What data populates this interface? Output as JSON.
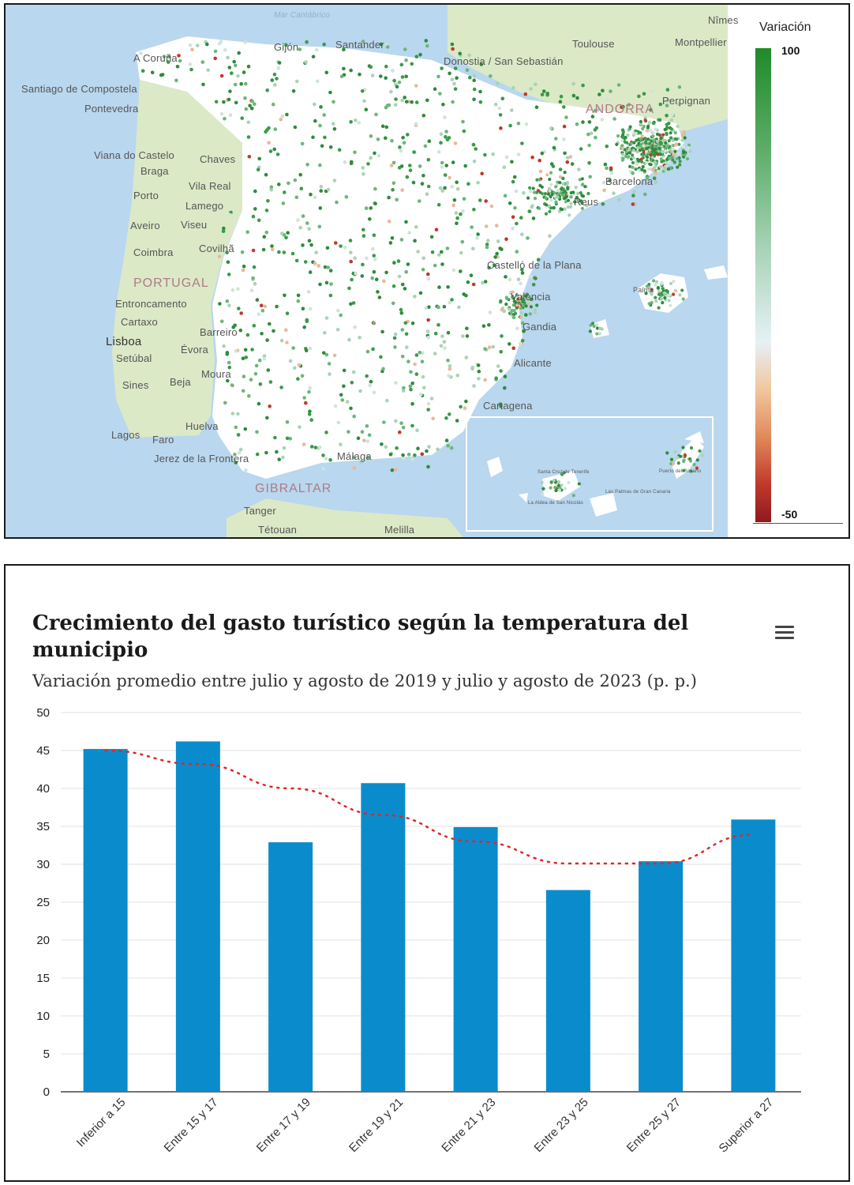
{
  "map": {
    "sea_label": "Mar Cantábrico",
    "places": [
      {
        "name": "Santander"
      },
      {
        "name": "Gijón"
      },
      {
        "name": "A Coruña"
      },
      {
        "name": "Santiago de Compostela"
      },
      {
        "name": "Pontevedra"
      },
      {
        "name": "Viana do Castelo"
      },
      {
        "name": "Braga"
      },
      {
        "name": "Chaves"
      },
      {
        "name": "Vila Real"
      },
      {
        "name": "Porto"
      },
      {
        "name": "Lamego"
      },
      {
        "name": "Aveiro"
      },
      {
        "name": "Viseu"
      },
      {
        "name": "Coimbra"
      },
      {
        "name": "Covilhã"
      },
      {
        "name": "PORTUGAL"
      },
      {
        "name": "Entroncamento"
      },
      {
        "name": "Cartaxo"
      },
      {
        "name": "Lisboa"
      },
      {
        "name": "Barreiro"
      },
      {
        "name": "Setúbal"
      },
      {
        "name": "Évora"
      },
      {
        "name": "Sines"
      },
      {
        "name": "Beja"
      },
      {
        "name": "Moura"
      },
      {
        "name": "Lagos"
      },
      {
        "name": "Faro"
      },
      {
        "name": "Huelva"
      },
      {
        "name": "Jerez de la Frontera"
      },
      {
        "name": "GIBRALTAR"
      },
      {
        "name": "Tanger"
      },
      {
        "name": "Tétouan"
      },
      {
        "name": "Melilla"
      },
      {
        "name": "Málaga"
      },
      {
        "name": "Cartagena"
      },
      {
        "name": "Alicante"
      },
      {
        "name": "Gandia"
      },
      {
        "name": "Valencia"
      },
      {
        "name": "Castelló de la Plana"
      },
      {
        "name": "Reus"
      },
      {
        "name": "Barcelona"
      },
      {
        "name": "ANDORRA"
      },
      {
        "name": "Perpignan"
      },
      {
        "name": "Toulouse"
      },
      {
        "name": "Montpellier"
      },
      {
        "name": "Nîmes"
      },
      {
        "name": "Donostia / San Sebastián"
      },
      {
        "name": "Palma"
      },
      {
        "name": "Santa Cruz de Tenerife"
      },
      {
        "name": "Las Palmas de Gran Canaria"
      },
      {
        "name": "La Aldea de San Nicolás"
      },
      {
        "name": "Puerto del Rosario"
      }
    ],
    "legend": {
      "title": "Variación",
      "max": "100",
      "min": "-50"
    },
    "colors": {
      "sea": "#b9d7ee",
      "land_spain": "#ffffff",
      "land_other": "#dbe9c7",
      "positive": "#2e8b3d",
      "neutral": "#d9e8e1",
      "negative": "#a8323a"
    }
  },
  "chart": {
    "title": "Crecimiento del gasto turístico según la temperatura del municipio",
    "subtitle": "Variación promedio entre julio y agosto de 2019 y julio y agosto de 2023 (p. p.)",
    "menu_icon": "hamburger-menu-icon"
  },
  "chart_data": {
    "type": "bar",
    "categories": [
      "Inferior a 15",
      "Entre 15 y 17",
      "Entre 17 y 19",
      "Entre 19 y 21",
      "Entre 21 y 23",
      "Entre 23 y 25",
      "Entre 25 y 27",
      "Superior a 27"
    ],
    "values": [
      45.2,
      46.2,
      32.9,
      40.7,
      34.9,
      26.6,
      30.4,
      35.9
    ],
    "trendline": [
      45.0,
      43.2,
      40.0,
      36.5,
      33.0,
      30.1,
      30.1,
      33.9
    ],
    "ylim": [
      0,
      50
    ],
    "yticks": [
      0,
      5,
      10,
      15,
      20,
      25,
      30,
      35,
      40,
      45,
      50
    ],
    "title": "Crecimiento del gasto turístico según la temperatura del municipio",
    "subtitle": "Variación promedio entre julio y agosto de 2019 y julio y agosto de 2023 (p. p.)",
    "bar_color": "#0a8ccc",
    "trend_color": "#e0262b",
    "grid": true,
    "legend": "none"
  }
}
